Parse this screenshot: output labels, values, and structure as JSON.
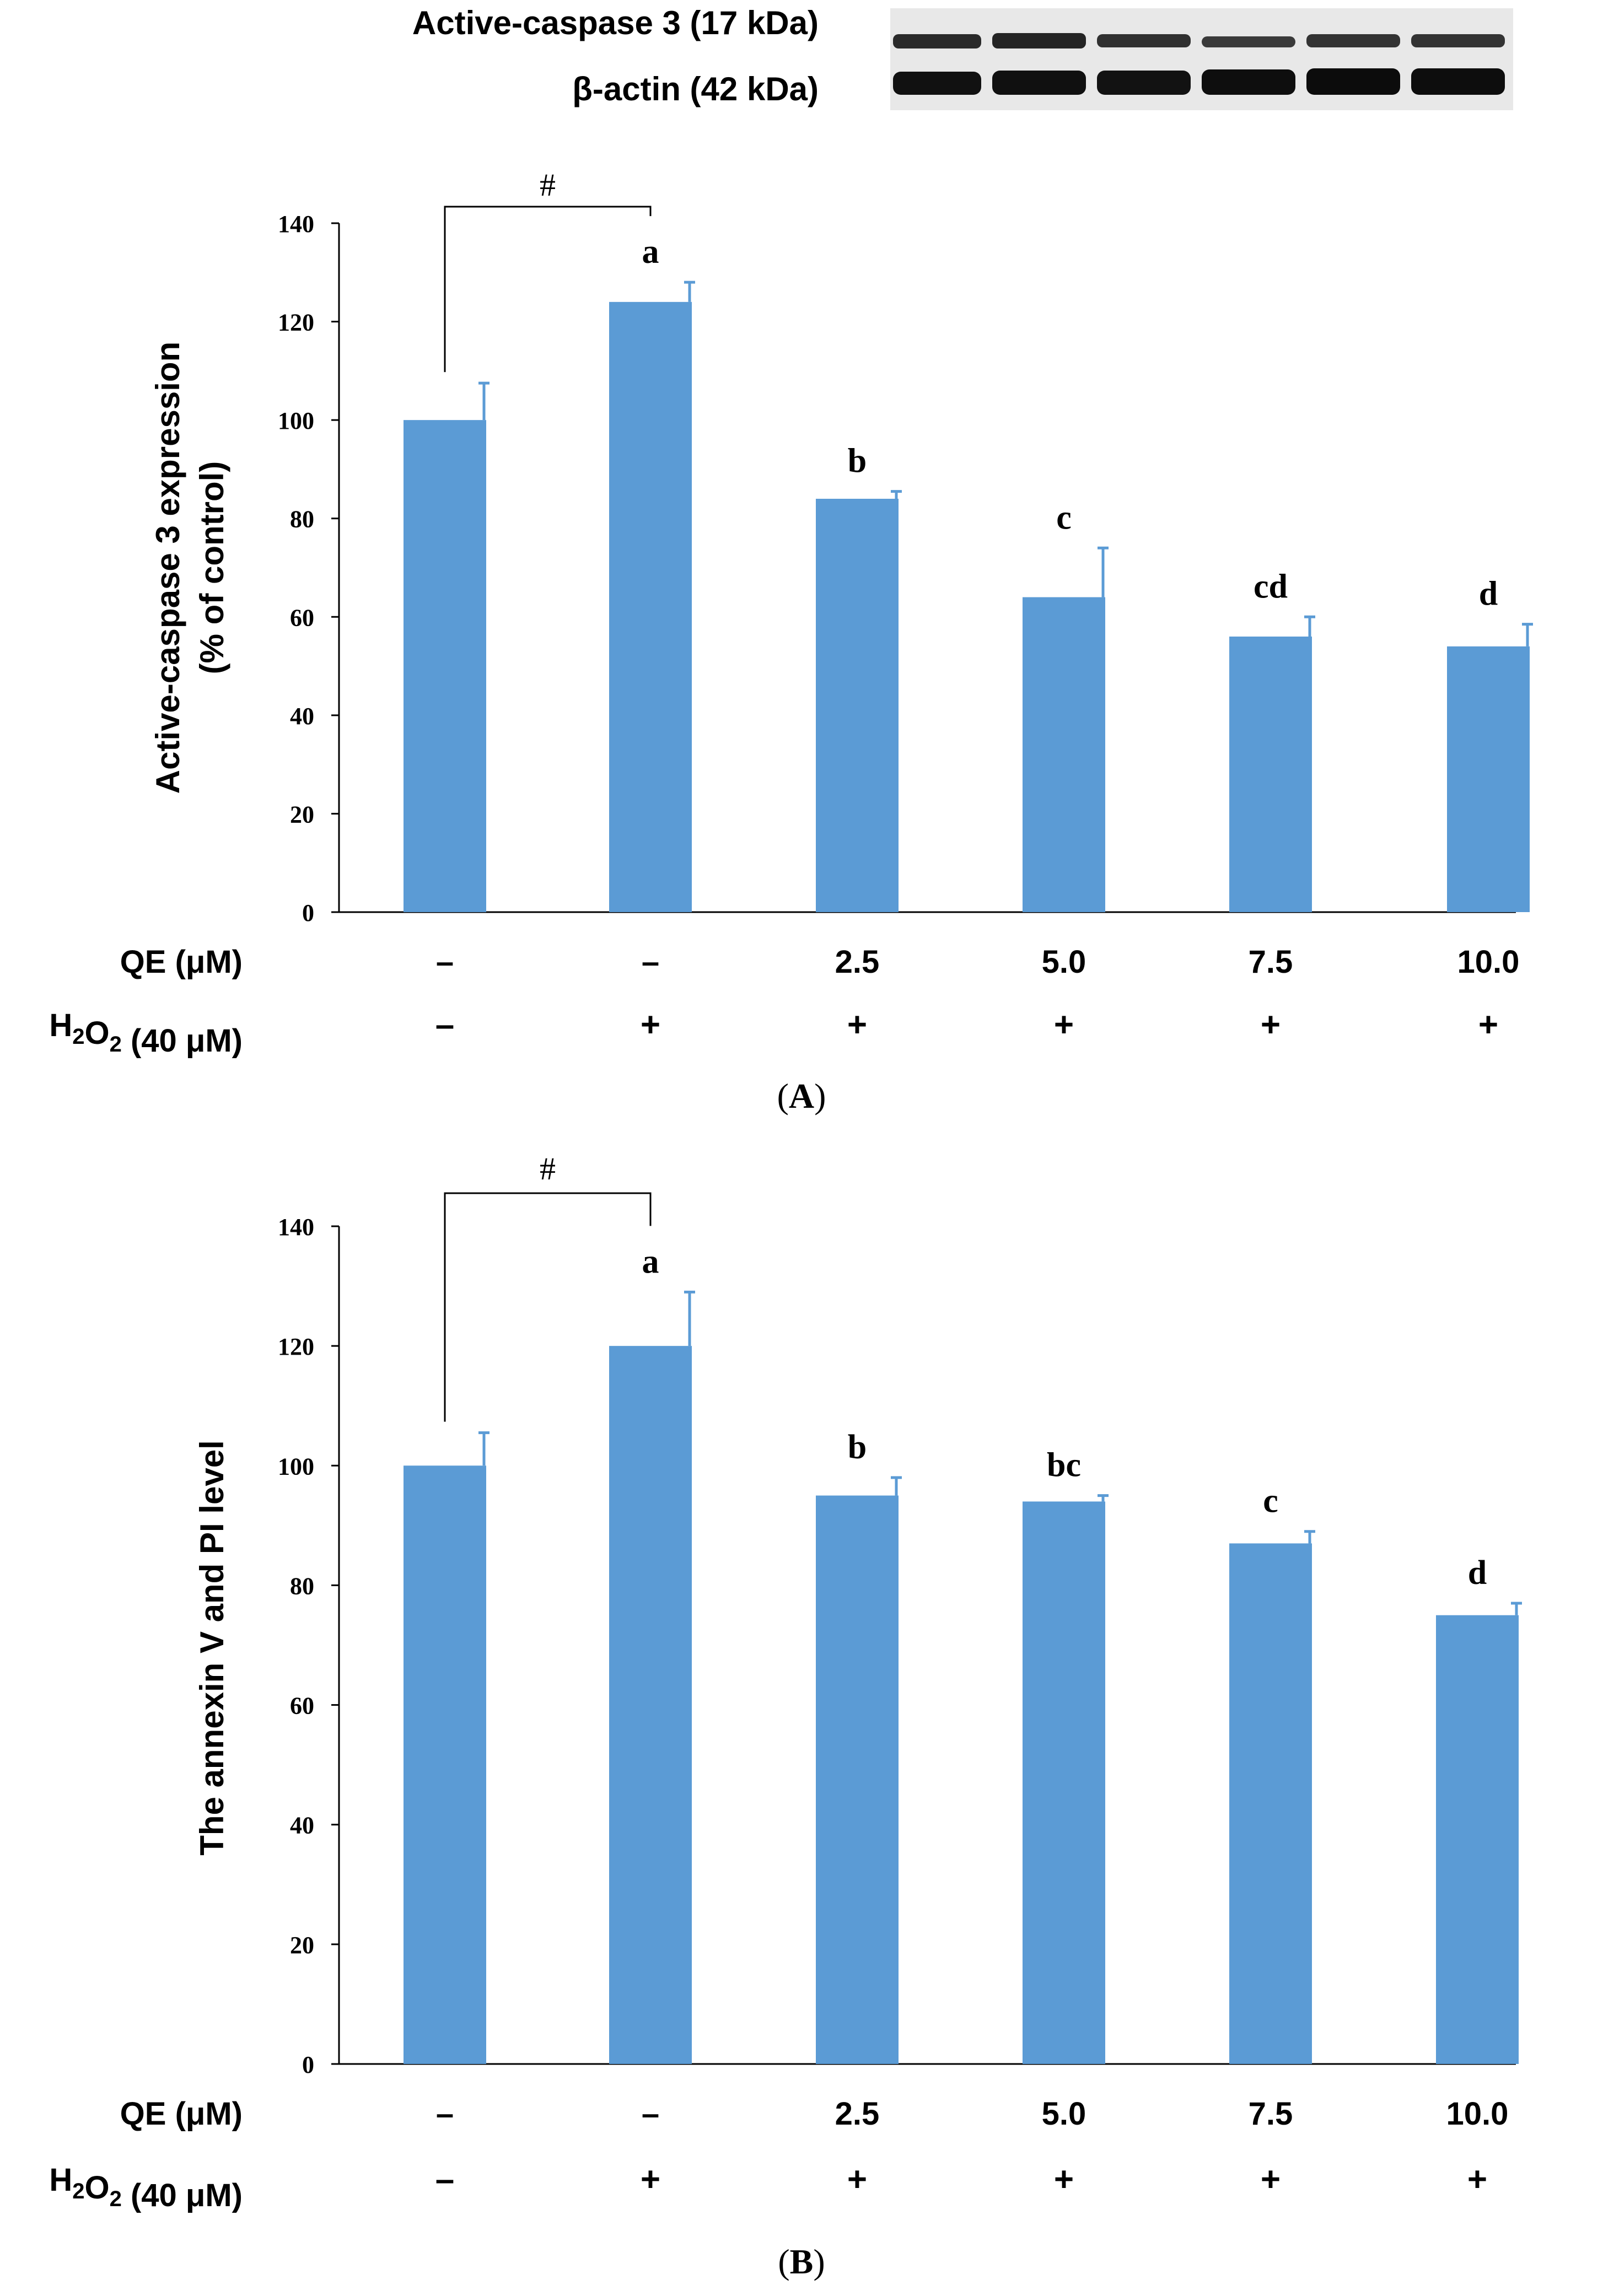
{
  "blot": {
    "rows": [
      {
        "label": "Active-caspase 3  (17 kDa)"
      },
      {
        "label": "β-actin (42 kDa)"
      }
    ]
  },
  "table_labels": {
    "qe_label": "QE (μM)",
    "h2o2_prefix": "H",
    "h2o2_sub1": "2",
    "h2o2_mid": "O",
    "h2o2_sub2": "2",
    "h2o2_suffix": " (40 μM)",
    "qe_values": [
      "–",
      "–",
      "2.5",
      "5.0",
      "7.5",
      "10.0"
    ],
    "h2o2_values": [
      "–",
      "+",
      "+",
      "+",
      "+",
      "+"
    ]
  },
  "chart_data": [
    {
      "type": "bar",
      "panel": "A",
      "panel_label": "(A)",
      "panel_letter": "A",
      "title": "",
      "ylabel_lines": [
        "Active-caspase 3 expression",
        "(% of control)"
      ],
      "xlabel": "",
      "ylim": [
        0,
        140
      ],
      "yticks": [
        0,
        20,
        40,
        60,
        80,
        100,
        120,
        140
      ],
      "categories": [
        "1",
        "2",
        "3",
        "4",
        "5",
        "6"
      ],
      "values": [
        100,
        124,
        84,
        64,
        56,
        54
      ],
      "errors": [
        7.5,
        4,
        1.5,
        10,
        4,
        4.5
      ],
      "letters": [
        "",
        "a",
        "b",
        "c",
        "cd",
        "d"
      ],
      "significance": {
        "from": 0,
        "to": 1,
        "label": "#"
      },
      "color": "#5b9bd5"
    },
    {
      "type": "bar",
      "panel": "B",
      "panel_label": "(B)",
      "panel_letter": "B",
      "title": "",
      "ylabel_lines": [
        "The annexin V and PI level"
      ],
      "xlabel": "",
      "ylim": [
        0,
        140
      ],
      "yticks": [
        0,
        20,
        40,
        60,
        80,
        100,
        120,
        140
      ],
      "categories": [
        "1",
        "2",
        "3",
        "4",
        "5",
        "6"
      ],
      "values": [
        100,
        120,
        95,
        94,
        87,
        75
      ],
      "errors": [
        5.5,
        9,
        3,
        1,
        2,
        2
      ],
      "letters": [
        "",
        "a",
        "b",
        "bc",
        "c",
        "d"
      ],
      "significance": {
        "from": 0,
        "to": 1,
        "label": "#"
      },
      "color": "#5b9bd5"
    }
  ]
}
